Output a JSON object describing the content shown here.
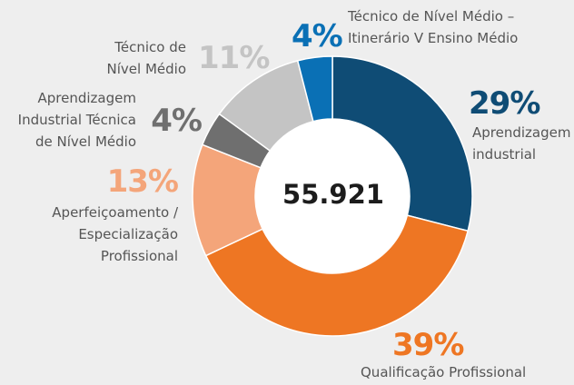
{
  "chart_data": {
    "type": "pie",
    "center_label": "55.921",
    "categories": [
      "Aprendizagem\nindustrial",
      "Qualificação Profissional",
      "Aperfeiçoamento /\nEspecialização\nProfissional",
      "Aprendizagem\nIndustrial Técnica\nde Nível Médio",
      "Técnico de\nNível Médio",
      "Técnico de Nível Médio –\nItinerário V Ensino Médio"
    ],
    "values": [
      29,
      39,
      13,
      4,
      11,
      4
    ],
    "value_labels": [
      "29%",
      "39%",
      "13%",
      "4%",
      "11%",
      "4%"
    ],
    "colors": [
      "#0f4c75",
      "#ee7623",
      "#f4a57a",
      "#6f6f6f",
      "#c4c4c4",
      "#0a70b5"
    ]
  }
}
